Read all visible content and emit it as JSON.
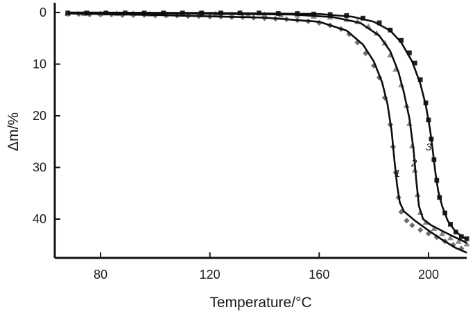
{
  "chart_data": {
    "type": "scatter",
    "title": "",
    "xlabel": "Temperature/°C",
    "ylabel": "Δm/%",
    "xlim": [
      65,
      215
    ],
    "ylim": [
      0,
      47
    ],
    "y_inverted": true,
    "grid": false,
    "legend": "none",
    "x_ticks": [
      80,
      120,
      160,
      200
    ],
    "y_ticks": [
      0,
      10,
      20,
      30,
      40
    ],
    "series": [
      {
        "name": "1",
        "marker": "diamond",
        "color": "#6e6e6e",
        "points": [
          [
            68,
            0.3
          ],
          [
            72,
            0.3
          ],
          [
            76,
            0.4
          ],
          [
            80,
            0.4
          ],
          [
            84,
            0.4
          ],
          [
            88,
            0.5
          ],
          [
            92,
            0.5
          ],
          [
            96,
            0.5
          ],
          [
            100,
            0.6
          ],
          [
            104,
            0.6
          ],
          [
            108,
            0.6
          ],
          [
            112,
            0.7
          ],
          [
            116,
            0.7
          ],
          [
            120,
            0.8
          ],
          [
            124,
            0.8
          ],
          [
            128,
            0.9
          ],
          [
            132,
            0.9
          ],
          [
            136,
            1.0
          ],
          [
            140,
            1.1
          ],
          [
            144,
            1.2
          ],
          [
            148,
            1.3
          ],
          [
            152,
            1.5
          ],
          [
            156,
            1.7
          ],
          [
            160,
            2.0
          ],
          [
            164,
            2.5
          ],
          [
            168,
            3.2
          ],
          [
            171,
            4.2
          ],
          [
            174,
            5.8
          ],
          [
            177,
            7.9
          ],
          [
            180,
            10.3
          ],
          [
            182,
            12.6
          ],
          [
            184,
            16.5
          ],
          [
            186,
            21.7
          ],
          [
            187,
            26.0
          ],
          [
            188,
            31.0
          ],
          [
            189,
            35.8
          ],
          [
            190,
            38.6
          ],
          [
            192,
            40.3
          ],
          [
            194,
            41.2
          ],
          [
            197,
            42.1
          ],
          [
            200,
            42.8
          ],
          [
            203,
            43.5
          ],
          [
            206,
            44.3
          ],
          [
            209,
            45.0
          ],
          [
            212,
            45.7
          ]
        ],
        "fit": [
          [
            68,
            0.2
          ],
          [
            100,
            0.5
          ],
          [
            140,
            1.0
          ],
          [
            160,
            1.8
          ],
          [
            170,
            3.5
          ],
          [
            176,
            6.2
          ],
          [
            180,
            9.5
          ],
          [
            183,
            13.5
          ],
          [
            185,
            17.8
          ],
          [
            186.5,
            23.0
          ],
          [
            187.5,
            28.5
          ],
          [
            188.5,
            33.5
          ],
          [
            189.5,
            36.8
          ],
          [
            191,
            38.5
          ],
          [
            195,
            40.3
          ],
          [
            200,
            42.2
          ],
          [
            205,
            44.0
          ],
          [
            210,
            45.6
          ],
          [
            214,
            46.5
          ]
        ]
      },
      {
        "name": "2",
        "marker": "triangle",
        "color": "#888888",
        "points": [
          [
            68,
            0.2
          ],
          [
            74,
            0.2
          ],
          [
            80,
            0.2
          ],
          [
            86,
            0.2
          ],
          [
            92,
            0.2
          ],
          [
            98,
            0.3
          ],
          [
            104,
            0.3
          ],
          [
            110,
            0.3
          ],
          [
            116,
            0.3
          ],
          [
            122,
            0.3
          ],
          [
            128,
            0.4
          ],
          [
            134,
            0.4
          ],
          [
            140,
            0.4
          ],
          [
            146,
            0.5
          ],
          [
            152,
            0.5
          ],
          [
            158,
            0.7
          ],
          [
            164,
            0.9
          ],
          [
            170,
            1.3
          ],
          [
            174,
            1.8
          ],
          [
            178,
            2.7
          ],
          [
            181,
            4.0
          ],
          [
            184,
            5.9
          ],
          [
            186,
            8.2
          ],
          [
            188,
            11.0
          ],
          [
            190,
            14.0
          ],
          [
            192,
            18.0
          ],
          [
            193,
            21.5
          ],
          [
            194,
            25.8
          ],
          [
            195,
            30.5
          ],
          [
            196,
            35.2
          ],
          [
            197,
            38.7
          ],
          [
            199,
            40.6
          ],
          [
            202,
            41.8
          ],
          [
            205,
            42.8
          ],
          [
            208,
            43.6
          ],
          [
            211,
            44.3
          ],
          [
            214,
            44.8
          ]
        ],
        "fit": [
          [
            68,
            0.1
          ],
          [
            110,
            0.2
          ],
          [
            150,
            0.4
          ],
          [
            165,
            0.9
          ],
          [
            175,
            2.0
          ],
          [
            182,
            4.5
          ],
          [
            186,
            7.5
          ],
          [
            189,
            11.5
          ],
          [
            191,
            15.5
          ],
          [
            193,
            20.5
          ],
          [
            194.5,
            26.5
          ],
          [
            195.5,
            32.5
          ],
          [
            196.5,
            37.5
          ],
          [
            198,
            40.0
          ],
          [
            201,
            41.2
          ],
          [
            205,
            42.3
          ],
          [
            210,
            43.6
          ],
          [
            214,
            44.6
          ]
        ]
      },
      {
        "name": "3",
        "marker": "square",
        "color": "#222222",
        "points": [
          [
            68,
            0.1
          ],
          [
            75,
            0.1
          ],
          [
            82,
            0.1
          ],
          [
            89,
            0.1
          ],
          [
            96,
            0.1
          ],
          [
            103,
            0.1
          ],
          [
            110,
            0.1
          ],
          [
            117,
            0.1
          ],
          [
            124,
            0.1
          ],
          [
            131,
            0.1
          ],
          [
            138,
            0.1
          ],
          [
            145,
            0.2
          ],
          [
            152,
            0.2
          ],
          [
            158,
            0.3
          ],
          [
            164,
            0.4
          ],
          [
            170,
            0.6
          ],
          [
            176,
            1.1
          ],
          [
            182,
            2.0
          ],
          [
            186,
            3.4
          ],
          [
            190,
            5.4
          ],
          [
            193,
            7.8
          ],
          [
            195,
            9.8
          ],
          [
            197,
            13.0
          ],
          [
            199,
            17.5
          ],
          [
            200,
            20.8
          ],
          [
            201,
            24.5
          ],
          [
            202,
            28.5
          ],
          [
            203,
            32.5
          ],
          [
            204,
            35.8
          ],
          [
            206,
            38.8
          ],
          [
            208,
            41.0
          ],
          [
            210,
            42.5
          ],
          [
            212,
            43.4
          ],
          [
            214,
            43.8
          ]
        ],
        "fit": [
          [
            68,
            0.0
          ],
          [
            120,
            0.1
          ],
          [
            160,
            0.3
          ],
          [
            172,
            0.8
          ],
          [
            180,
            1.8
          ],
          [
            186,
            3.5
          ],
          [
            190,
            5.8
          ],
          [
            194,
            9.5
          ],
          [
            197,
            13.8
          ],
          [
            199,
            18.0
          ],
          [
            200.5,
            22.5
          ],
          [
            201.5,
            26.5
          ],
          [
            202.5,
            31.0
          ],
          [
            203.5,
            34.5
          ],
          [
            205,
            37.5
          ],
          [
            207,
            40.3
          ],
          [
            210,
            42.5
          ],
          [
            214,
            44.0
          ]
        ]
      }
    ]
  }
}
